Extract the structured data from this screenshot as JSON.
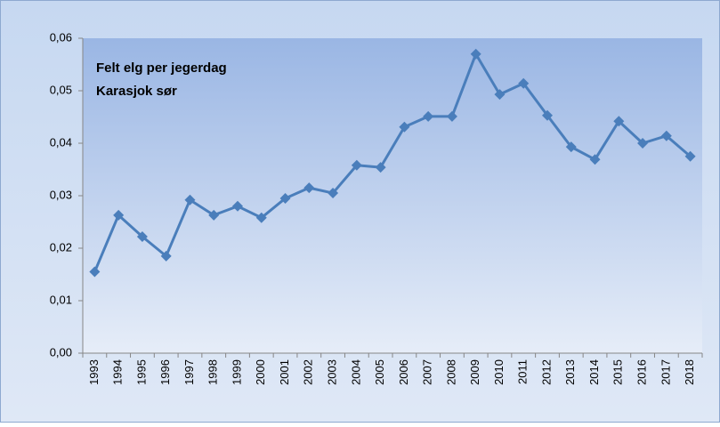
{
  "chart_data": {
    "type": "line",
    "title": "Felt elg per jegerdag",
    "subtitle": "Karasjok sør",
    "categories": [
      "1993",
      "1994",
      "1995",
      "1996",
      "1997",
      "1998",
      "1999",
      "2000",
      "2001",
      "2002",
      "2003",
      "2004",
      "2005",
      "2006",
      "2007",
      "2008",
      "2009",
      "2010",
      "2011",
      "2012",
      "2013",
      "2014",
      "2015",
      "2016",
      "2017",
      "2018"
    ],
    "series": [
      {
        "name": "Felt elg per jegerdag",
        "color": "#4a7ebb",
        "values": [
          0.0155,
          0.0263,
          0.0222,
          0.0185,
          0.0292,
          0.0263,
          0.028,
          0.0258,
          0.0295,
          0.0315,
          0.0305,
          0.0358,
          0.0354,
          0.0431,
          0.0451,
          0.0451,
          0.057,
          0.0493,
          0.0514,
          0.0453,
          0.0393,
          0.0369,
          0.0442,
          0.04,
          0.0414,
          0.0375
        ]
      }
    ],
    "ylim": [
      0,
      0.06
    ],
    "yticks": [
      {
        "value": 0,
        "label": "0,00"
      },
      {
        "value": 0.01,
        "label": "0,01"
      },
      {
        "value": 0.02,
        "label": "0,02"
      },
      {
        "value": 0.03,
        "label": "0,03"
      },
      {
        "value": 0.04,
        "label": "0,04"
      },
      {
        "value": 0.05,
        "label": "0,05"
      },
      {
        "value": 0.06,
        "label": "0,06"
      }
    ],
    "grid": false
  }
}
